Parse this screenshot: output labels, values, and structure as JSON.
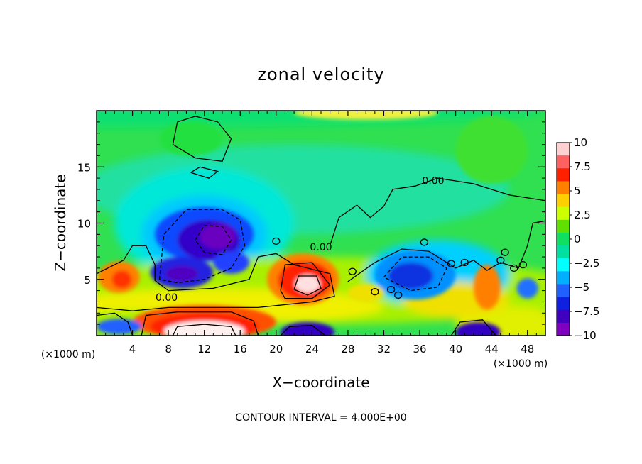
{
  "chart_data": {
    "type": "heatmap",
    "title": "zonal velocity",
    "xlabel": "X−coordinate",
    "ylabel": "Z−coordinate",
    "x_ticks": [
      4,
      8,
      12,
      16,
      20,
      24,
      28,
      32,
      36,
      40,
      44,
      48
    ],
    "y_ticks": [
      5,
      10,
      15
    ],
    "xlim": [
      0,
      50
    ],
    "ylim": [
      0,
      20
    ],
    "x_units_left": "(×1000 m)",
    "x_units_right": "(×1000 m)",
    "colorbar": {
      "labels": [
        "10",
        "7.5",
        "5",
        "2.5",
        "0",
        "−2.5",
        "−5",
        "−7.5",
        "−10"
      ],
      "values": [
        10,
        7.5,
        5,
        2.5,
        0,
        -2.5,
        -5,
        -7.5,
        -10
      ],
      "colors": [
        "#ffd0d0",
        "#ff6060",
        "#ff2000",
        "#ff8000",
        "#ffd000",
        "#ccff00",
        "#60e000",
        "#10e060",
        "#00e0a0",
        "#00ffff",
        "#00b0ff",
        "#2060ff",
        "#1020e0",
        "#4000c0",
        "#8000c0"
      ]
    },
    "contour_labels": [
      {
        "text": "0.00",
        "x": 37.5,
        "y": 13.8
      },
      {
        "text": "0.00",
        "x": 25.0,
        "y": 7.9
      },
      {
        "text": "0.00",
        "x": 7.8,
        "y": 3.4
      }
    ],
    "features": [
      {
        "kind": "negative",
        "x": 12.5,
        "y": 8.5,
        "value": -10
      },
      {
        "kind": "negative",
        "x": 9.5,
        "y": 5.6,
        "value": -8
      },
      {
        "kind": "negative",
        "x": 35.5,
        "y": 5.5,
        "value": -6
      },
      {
        "kind": "positive",
        "x": 23.5,
        "y": 4.8,
        "value": 10
      },
      {
        "kind": "positive",
        "x": 12.0,
        "y": 0.8,
        "value": 10
      },
      {
        "kind": "positive",
        "x": 2.5,
        "y": 5.0,
        "value": 6
      },
      {
        "kind": "positive",
        "x": 43.5,
        "y": 4.0,
        "value": 5
      }
    ]
  },
  "footer": {
    "contour_interval": "CONTOUR INTERVAL = 4.000E+00"
  }
}
